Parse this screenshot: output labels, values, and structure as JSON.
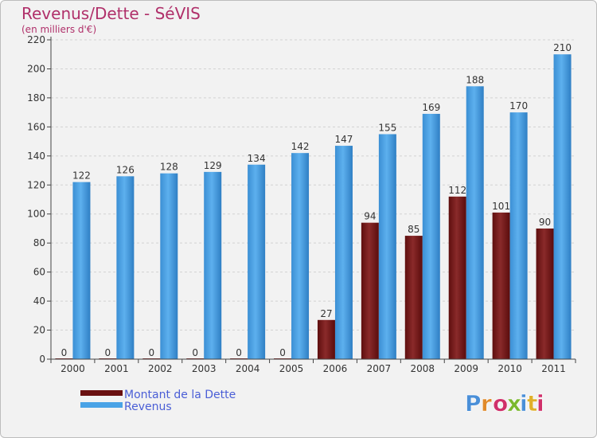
{
  "title": "Revenus/Dette - SéVIS",
  "subtitle": "(en milliers d'€)",
  "chart_data": {
    "type": "bar",
    "title": "Revenus/Dette - SéVIS",
    "ylabel": "(en milliers d'€)",
    "xlabel": "",
    "categories": [
      "2000",
      "2001",
      "2002",
      "2003",
      "2004",
      "2005",
      "2006",
      "2007",
      "2008",
      "2009",
      "2010",
      "2011"
    ],
    "series": [
      {
        "name": "Montant de la Dette",
        "values": [
          0,
          0,
          0,
          0,
          0,
          0,
          27,
          94,
          85,
          112,
          101,
          90
        ],
        "color": "#7a1e1e"
      },
      {
        "name": "Revenus",
        "values": [
          122,
          126,
          128,
          129,
          134,
          142,
          147,
          155,
          169,
          188,
          170,
          210
        ],
        "color": "#4aa3e6"
      }
    ],
    "ylim": [
      0,
      220
    ],
    "yticks": [
      0,
      20,
      40,
      60,
      80,
      100,
      120,
      140,
      160,
      180,
      200,
      220
    ],
    "grid": true,
    "legend": "bottom-left"
  },
  "logo": {
    "text": "Proxiti",
    "colors": [
      "#4a8fd8",
      "#e08a2a",
      "#d0306a",
      "#7ab82e",
      "#4a8fd8",
      "#e0b02a",
      "#d0306a"
    ]
  }
}
